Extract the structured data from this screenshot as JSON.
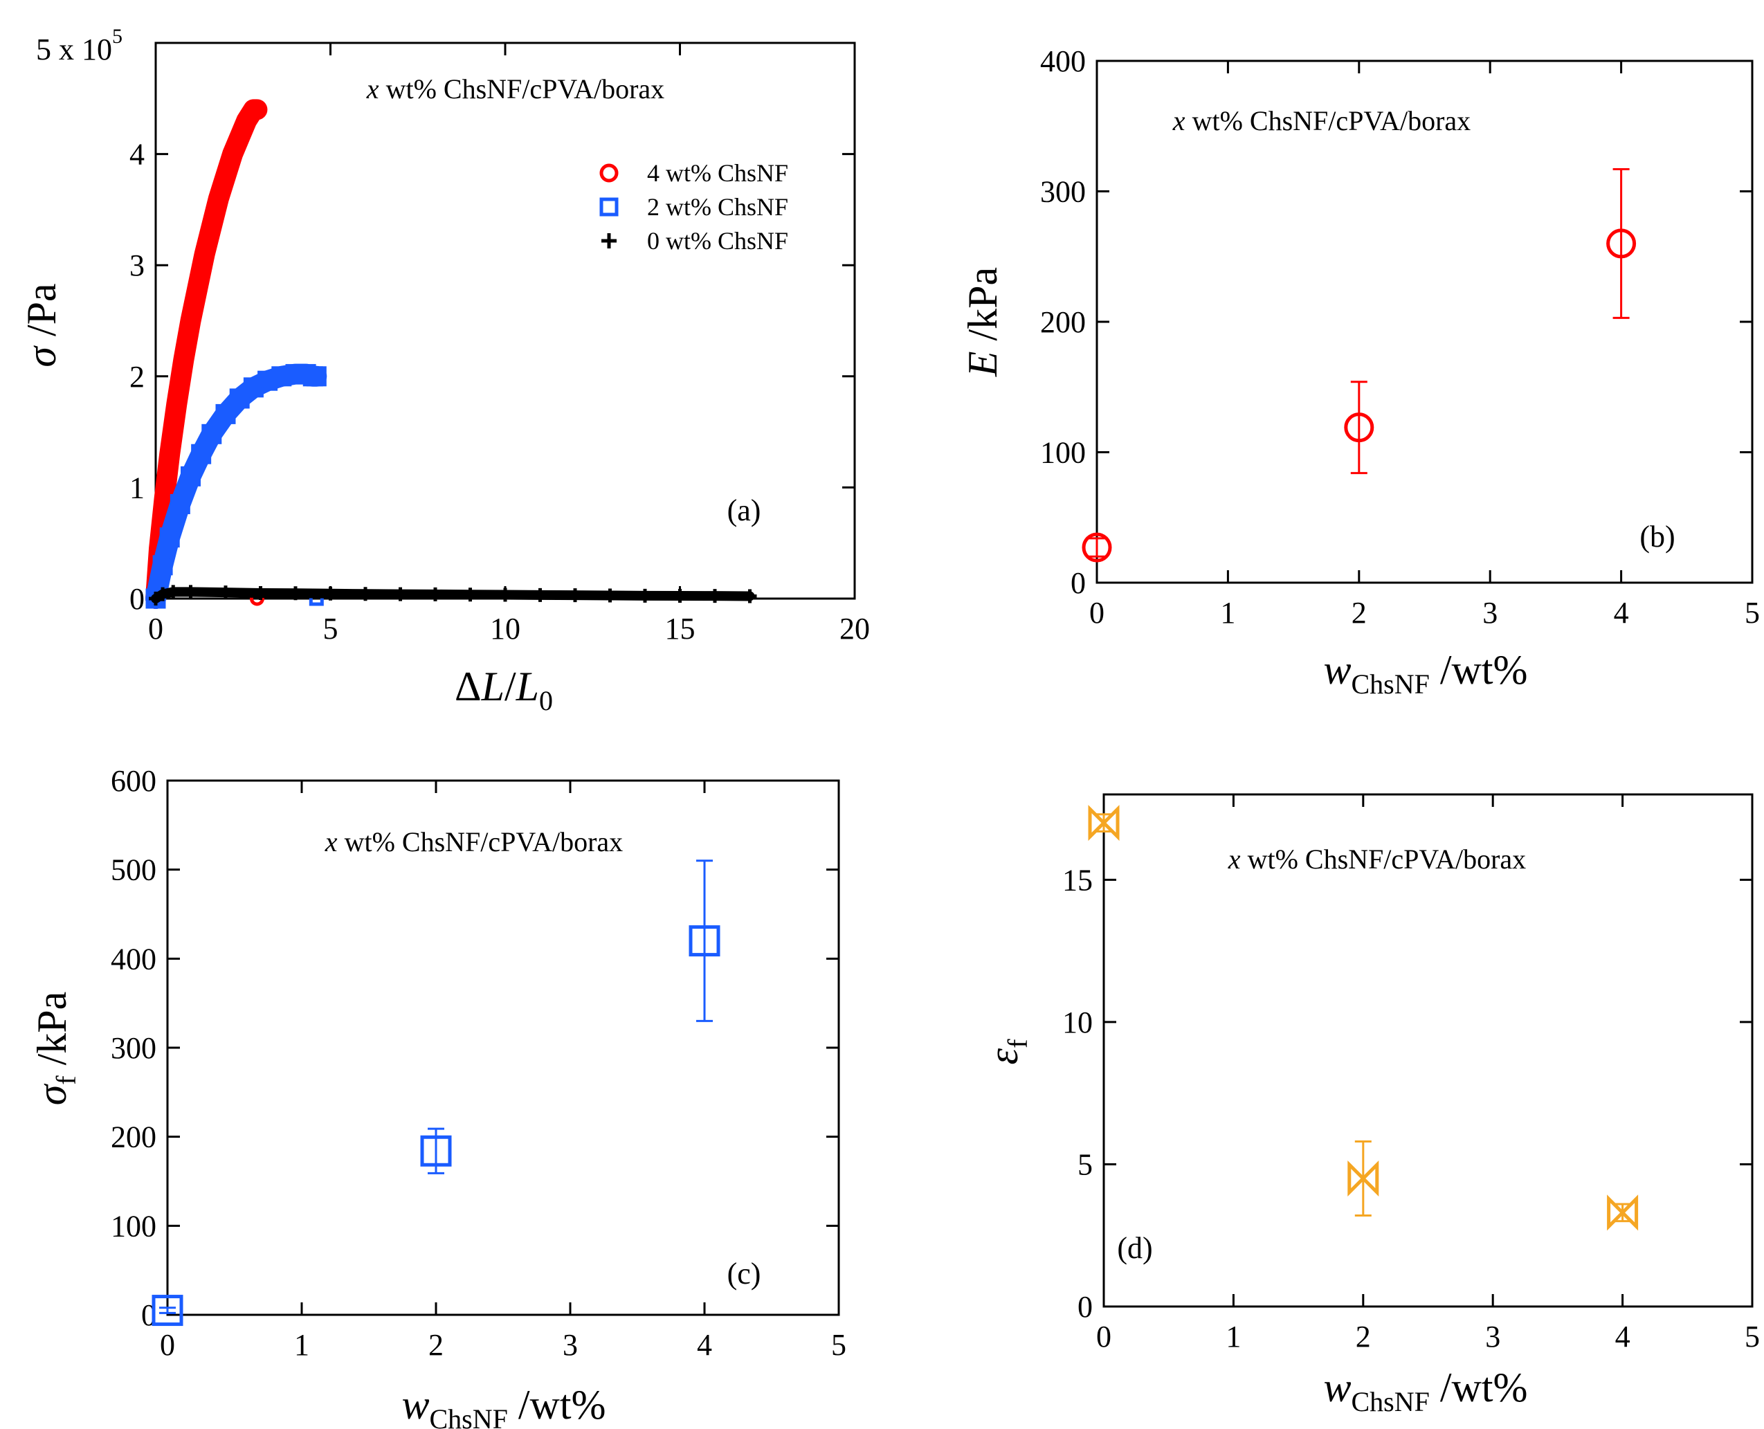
{
  "chart_data": [
    {
      "panel": "(a)",
      "type": "line",
      "title": "x wt% ChsNF/cPVA/borax",
      "title_var": "x",
      "title_rest": " wt% ChsNF/cPVA/borax",
      "xlabel": "ΔL/L0",
      "xlabel_parts": {
        "delta": "Δ",
        "var": "L",
        "slash": "/",
        "var2": "L",
        "sub": "0"
      },
      "ylabel": "σ /Pa",
      "ylabel_parts": {
        "sym": "σ",
        "rest": " /Pa"
      },
      "y_multiplier": "5 x 10",
      "y_multiplier_exp": "5",
      "xlim": [
        0,
        20
      ],
      "ylim": [
        0,
        5
      ],
      "xticks": [
        0,
        5,
        10,
        15,
        20
      ],
      "yticks": [
        0,
        1,
        2,
        3,
        4
      ],
      "legend_position": "upper-right",
      "series": [
        {
          "name": "4 wt% ChsNF",
          "color": "#ff0000",
          "marker": "circle",
          "x": [
            0,
            0.1,
            0.25,
            0.4,
            0.6,
            0.8,
            1.0,
            1.2,
            1.4,
            1.6,
            1.8,
            2.0,
            2.2,
            2.4,
            2.6,
            2.8,
            2.9
          ],
          "y": [
            0,
            0.45,
            0.9,
            1.3,
            1.75,
            2.15,
            2.5,
            2.8,
            3.1,
            3.35,
            3.6,
            3.8,
            4.0,
            4.15,
            4.3,
            4.4,
            4.4
          ]
        },
        {
          "name": "2 wt% ChsNF",
          "color": "#1a5cff",
          "marker": "square",
          "x": [
            0,
            0.2,
            0.4,
            0.7,
            1.0,
            1.3,
            1.6,
            2.0,
            2.4,
            2.8,
            3.2,
            3.6,
            4.0,
            4.3,
            4.5,
            4.6
          ],
          "y": [
            0,
            0.3,
            0.55,
            0.85,
            1.1,
            1.3,
            1.48,
            1.66,
            1.8,
            1.9,
            1.96,
            2.0,
            2.02,
            2.02,
            2.0,
            2.0
          ]
        },
        {
          "name": "0 wt% ChsNF",
          "color": "#000000",
          "marker": "plus",
          "x": [
            0,
            0.2,
            0.5,
            1,
            2,
            3,
            4,
            5,
            6,
            7,
            8,
            9,
            10,
            11,
            12,
            13,
            14,
            15,
            16,
            17
          ],
          "y": [
            0,
            0.04,
            0.06,
            0.06,
            0.055,
            0.05,
            0.048,
            0.045,
            0.042,
            0.04,
            0.038,
            0.036,
            0.034,
            0.032,
            0.03,
            0.028,
            0.026,
            0.025,
            0.024,
            0.022
          ]
        }
      ]
    },
    {
      "panel": "(b)",
      "type": "scatter",
      "title": "x wt% ChsNF/cPVA/borax",
      "title_var": "x",
      "title_rest": " wt% ChsNF/cPVA/borax",
      "xlabel": "wChsNF /wt%",
      "xlabel_parts": {
        "var": "w",
        "sub": "ChsNF",
        "rest": " /wt%"
      },
      "ylabel": "E /kPa",
      "ylabel_parts": {
        "sym": "E",
        "rest": " /kPa"
      },
      "xlim": [
        0,
        5
      ],
      "ylim": [
        0,
        400
      ],
      "xticks": [
        0,
        1,
        2,
        3,
        4,
        5
      ],
      "yticks": [
        0,
        100,
        200,
        300,
        400
      ],
      "series": [
        {
          "color": "#ff0000",
          "marker": "circle",
          "x": [
            0,
            2,
            4
          ],
          "y": [
            27,
            119,
            260
          ],
          "err": [
            7,
            35,
            57
          ]
        }
      ]
    },
    {
      "panel": "(c)",
      "type": "scatter",
      "title": "x wt% ChsNF/cPVA/borax",
      "title_var": "x",
      "title_rest": " wt% ChsNF/cPVA/borax",
      "xlabel": "wChsNF /wt%",
      "xlabel_parts": {
        "var": "w",
        "sub": "ChsNF",
        "rest": " /wt%"
      },
      "ylabel": "σf /kPa",
      "ylabel_parts": {
        "sym": "σ",
        "sub": "f",
        "rest": " /kPa"
      },
      "xlim": [
        0,
        5
      ],
      "ylim": [
        0,
        600
      ],
      "xticks": [
        0,
        1,
        2,
        3,
        4,
        5
      ],
      "yticks": [
        0,
        100,
        200,
        300,
        400,
        500,
        600
      ],
      "series": [
        {
          "color": "#1a5cff",
          "marker": "square",
          "x": [
            0,
            2,
            4
          ],
          "y": [
            5,
            184,
            420
          ],
          "err": [
            3,
            25,
            90
          ]
        }
      ]
    },
    {
      "panel": "(d)",
      "type": "scatter",
      "title": "x wt% ChsNF/cPVA/borax",
      "title_var": "x",
      "title_rest": " wt% ChsNF/cPVA/borax",
      "xlabel": "wChsNF /wt%",
      "xlabel_parts": {
        "var": "w",
        "sub": "ChsNF",
        "rest": " /wt%"
      },
      "ylabel": "εf",
      "ylabel_parts": {
        "sym": "ε",
        "sub": "f",
        "rest": ""
      },
      "xlim": [
        0,
        5
      ],
      "ylim": [
        0,
        18
      ],
      "xticks": [
        0,
        1,
        2,
        3,
        4,
        5
      ],
      "yticks": [
        0,
        5,
        10,
        15
      ],
      "series": [
        {
          "color": "#f5a623",
          "marker": "bowtie",
          "x": [
            0,
            2,
            4
          ],
          "y": [
            17,
            4.5,
            3.3
          ],
          "err": [
            0.3,
            1.3,
            0.3
          ]
        }
      ]
    }
  ]
}
